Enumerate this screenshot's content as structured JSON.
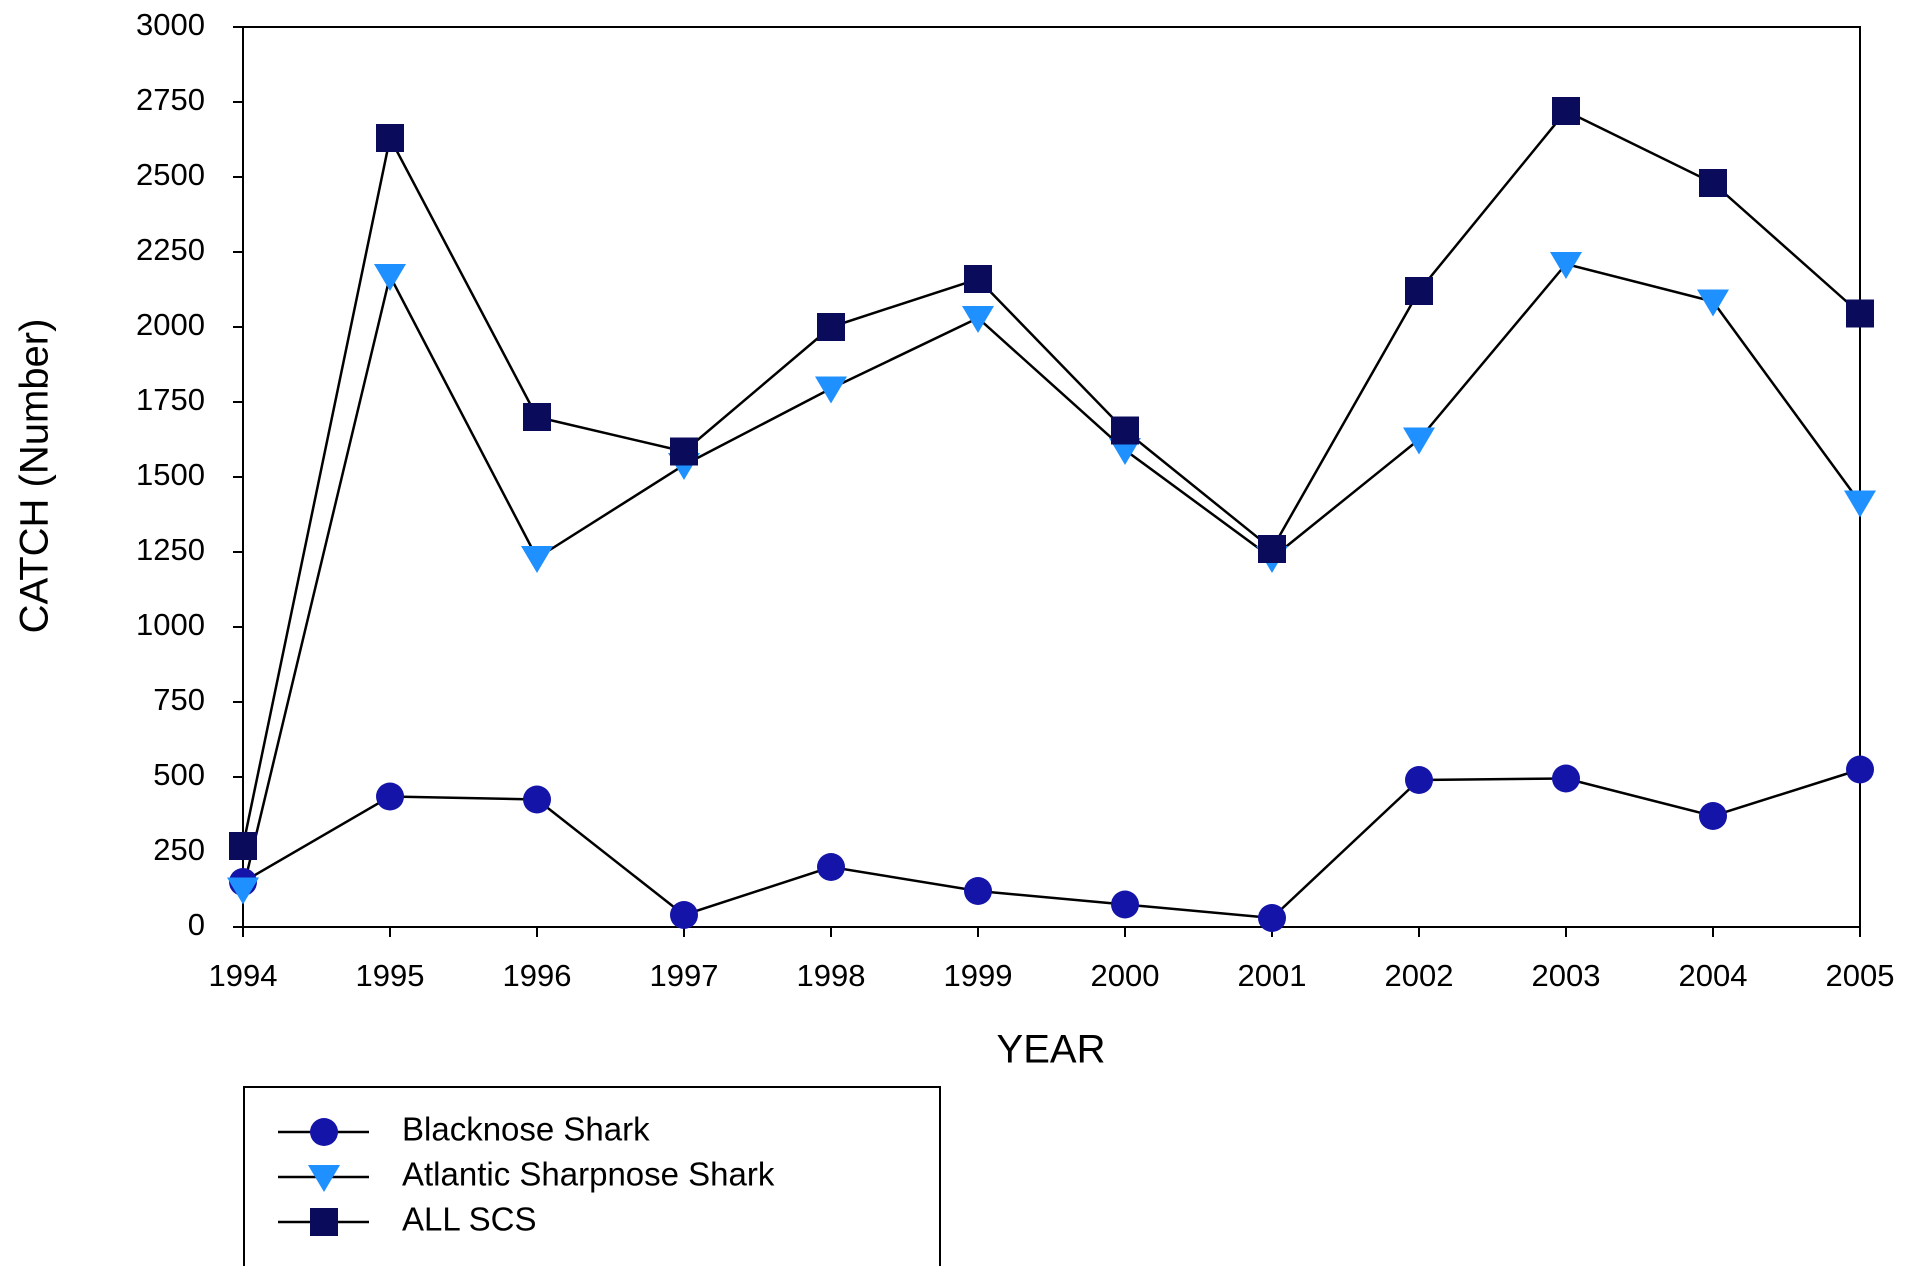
{
  "chart_data": {
    "type": "line",
    "x_label": "YEAR",
    "y_label": "CATCH (Number)",
    "x": [
      1994,
      1995,
      1996,
      1997,
      1998,
      1999,
      2000,
      2001,
      2002,
      2003,
      2004,
      2005
    ],
    "xlim": [
      1994,
      2005
    ],
    "xticks": [
      1994,
      1995,
      1996,
      1997,
      1998,
      1999,
      2000,
      2001,
      2002,
      2003,
      2004,
      2005
    ],
    "ylim": [
      0,
      3000
    ],
    "yticks": [
      0,
      250,
      500,
      750,
      1000,
      1250,
      1500,
      1750,
      2000,
      2250,
      2500,
      2750,
      3000
    ],
    "grid": false,
    "legend": "below",
    "line_color": "#000000",
    "series": [
      {
        "name": "Blacknose Shark",
        "color": "#1414a8",
        "marker": "circle",
        "values": [
          150,
          435,
          425,
          40,
          200,
          120,
          75,
          30,
          490,
          495,
          370,
          525
        ]
      },
      {
        "name": "Atlantic Sharpnose Shark",
        "color": "#1e90ff",
        "marker": "triangle-down",
        "values": [
          125,
          2170,
          1230,
          1540,
          1795,
          2030,
          1590,
          1230,
          1625,
          2210,
          2085,
          1415
        ]
      },
      {
        "name": "ALL SCS",
        "color": "#0b0b5c",
        "marker": "square",
        "values": [
          270,
          2630,
          1700,
          1585,
          2000,
          2160,
          1655,
          1260,
          2120,
          2720,
          2480,
          2045
        ]
      }
    ]
  }
}
